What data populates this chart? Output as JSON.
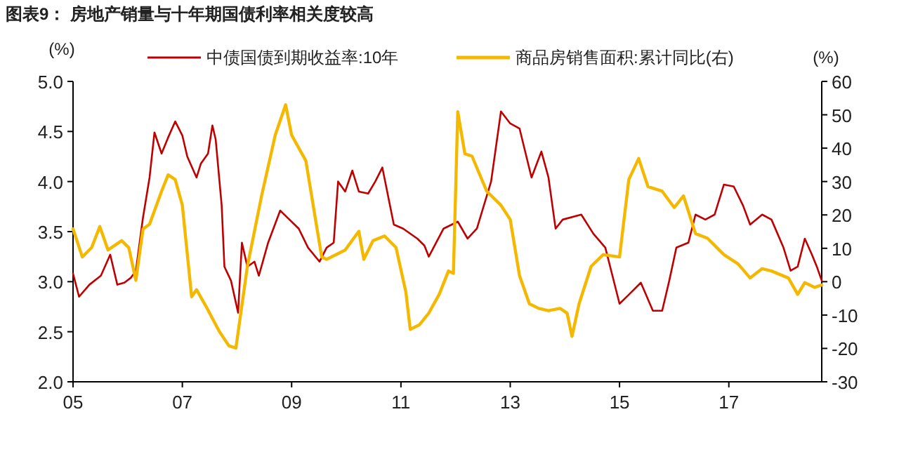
{
  "chart_data": {
    "type": "line",
    "title": "图表9：  房地产销量与十年期国债利率相关度较高",
    "ylabel": "(%)",
    "y2label": "(%)",
    "legend": "top",
    "xlim": [
      2005,
      2018.7
    ],
    "xticks": [
      {
        "value": 2005,
        "label": "05"
      },
      {
        "value": 2007,
        "label": "07"
      },
      {
        "value": 2009,
        "label": "09"
      },
      {
        "value": 2011,
        "label": "11"
      },
      {
        "value": 2013,
        "label": "13"
      },
      {
        "value": 2015,
        "label": "15"
      },
      {
        "value": 2017,
        "label": "17"
      }
    ],
    "ylim": [
      2.0,
      5.0
    ],
    "yticks": [
      {
        "value": 2.0,
        "label": "2.0"
      },
      {
        "value": 2.5,
        "label": "2.5"
      },
      {
        "value": 3.0,
        "label": "3.0"
      },
      {
        "value": 3.5,
        "label": "3.5"
      },
      {
        "value": 4.0,
        "label": "4.0"
      },
      {
        "value": 4.5,
        "label": "4.5"
      },
      {
        "value": 5.0,
        "label": "5.0"
      }
    ],
    "y2lim": [
      -30,
      60
    ],
    "y2ticks": [
      -30,
      -20,
      -10,
      0,
      10,
      20,
      30,
      40,
      50,
      60
    ],
    "series": [
      {
        "name": "中债国债到期收益率:10年",
        "color": "#c00000",
        "x": [
          2005.0,
          2005.11,
          2005.3,
          2005.51,
          2005.68,
          2005.81,
          2005.94,
          2006.06,
          2006.15,
          2006.28,
          2006.4,
          2006.49,
          2006.62,
          2006.74,
          2006.87,
          2007.0,
          2007.09,
          2007.26,
          2007.34,
          2007.47,
          2007.55,
          2007.61,
          2007.72,
          2007.77,
          2007.89,
          2008.02,
          2008.09,
          2008.19,
          2008.32,
          2008.4,
          2008.57,
          2008.79,
          2008.96,
          2009.13,
          2009.3,
          2009.51,
          2009.64,
          2009.77,
          2009.85,
          2009.98,
          2010.11,
          2010.23,
          2010.4,
          2010.53,
          2010.66,
          2010.87,
          2011.04,
          2011.3,
          2011.43,
          2011.51,
          2011.78,
          2012.04,
          2012.22,
          2012.39,
          2012.65,
          2012.83,
          2013.0,
          2013.17,
          2013.39,
          2013.57,
          2013.7,
          2013.83,
          2013.96,
          2014.3,
          2014.52,
          2014.74,
          2014.87,
          2015.0,
          2015.17,
          2015.39,
          2015.61,
          2015.78,
          2015.91,
          2016.04,
          2016.26,
          2016.39,
          2016.57,
          2016.74,
          2016.91,
          2017.09,
          2017.26,
          2017.39,
          2017.61,
          2017.78,
          2018.0,
          2018.13,
          2018.26,
          2018.39,
          2018.52,
          2018.61,
          2018.7
        ],
        "values": [
          3.08,
          2.85,
          2.97,
          3.06,
          3.27,
          2.97,
          2.99,
          3.04,
          3.11,
          3.64,
          4.04,
          4.49,
          4.28,
          4.44,
          4.6,
          4.46,
          4.25,
          4.04,
          4.18,
          4.28,
          4.56,
          4.42,
          3.76,
          3.15,
          3.01,
          2.69,
          3.39,
          3.15,
          3.2,
          3.06,
          3.39,
          3.71,
          3.62,
          3.53,
          3.34,
          3.2,
          3.34,
          3.39,
          4.0,
          3.9,
          4.11,
          3.9,
          3.88,
          4.0,
          4.14,
          3.57,
          3.53,
          3.43,
          3.36,
          3.25,
          3.53,
          3.6,
          3.43,
          3.53,
          4.0,
          4.7,
          4.58,
          4.53,
          4.04,
          4.3,
          4.04,
          3.53,
          3.62,
          3.67,
          3.48,
          3.34,
          3.06,
          2.78,
          2.87,
          2.99,
          2.71,
          2.71,
          3.01,
          3.34,
          3.39,
          3.67,
          3.62,
          3.67,
          3.97,
          3.95,
          3.76,
          3.57,
          3.67,
          3.62,
          3.34,
          3.11,
          3.15,
          3.43,
          3.27,
          3.15,
          3.01
        ]
      },
      {
        "name": "商品房销售面积:累计同比(右)",
        "color": "#f5b800",
        "axis": "y2",
        "x": [
          2005.0,
          2005.17,
          2005.34,
          2005.49,
          2005.64,
          2005.89,
          2006.02,
          2006.15,
          2006.28,
          2006.4,
          2006.62,
          2006.74,
          2006.87,
          2007.0,
          2007.17,
          2007.26,
          2007.43,
          2007.68,
          2007.85,
          2007.98,
          2008.19,
          2008.45,
          2008.7,
          2008.89,
          2009.0,
          2009.26,
          2009.55,
          2009.64,
          2009.98,
          2010.23,
          2010.32,
          2010.49,
          2010.7,
          2010.91,
          2011.09,
          2011.17,
          2011.34,
          2011.51,
          2011.7,
          2011.87,
          2011.96,
          2012.04,
          2012.17,
          2012.3,
          2012.57,
          2012.83,
          2013.0,
          2013.17,
          2013.35,
          2013.52,
          2013.7,
          2013.91,
          2014.04,
          2014.13,
          2014.26,
          2014.48,
          2014.7,
          2015.0,
          2015.17,
          2015.35,
          2015.52,
          2015.78,
          2016.0,
          2016.17,
          2016.39,
          2016.61,
          2016.91,
          2017.17,
          2017.39,
          2017.61,
          2017.78,
          2018.09,
          2018.26,
          2018.39,
          2018.57,
          2018.7
        ],
        "values": [
          15.8,
          7.4,
          10.2,
          16.5,
          9.5,
          12.3,
          10.2,
          0.4,
          15.8,
          17.2,
          27.1,
          32.0,
          30.6,
          22.9,
          -4.5,
          -2.4,
          -7.3,
          -15.0,
          -19.2,
          -19.9,
          4.6,
          25.7,
          43.9,
          53.0,
          43.9,
          36.2,
          7.4,
          6.7,
          9.5,
          15.1,
          6.7,
          12.3,
          13.7,
          10.2,
          -3.1,
          -14.3,
          -12.9,
          -9.4,
          -3.8,
          3.2,
          2.5,
          50.9,
          38.3,
          37.6,
          27.1,
          22.9,
          18.6,
          1.8,
          -6.6,
          -8.0,
          -8.7,
          -8.0,
          -9.4,
          -16.4,
          -6.6,
          4.6,
          8.1,
          7.4,
          30.6,
          36.9,
          28.5,
          27.1,
          22.2,
          25.7,
          14.4,
          13.0,
          8.1,
          5.3,
          1.1,
          3.9,
          3.2,
          1.1,
          -3.8,
          -0.3,
          -1.7,
          -1.0
        ]
      }
    ]
  }
}
